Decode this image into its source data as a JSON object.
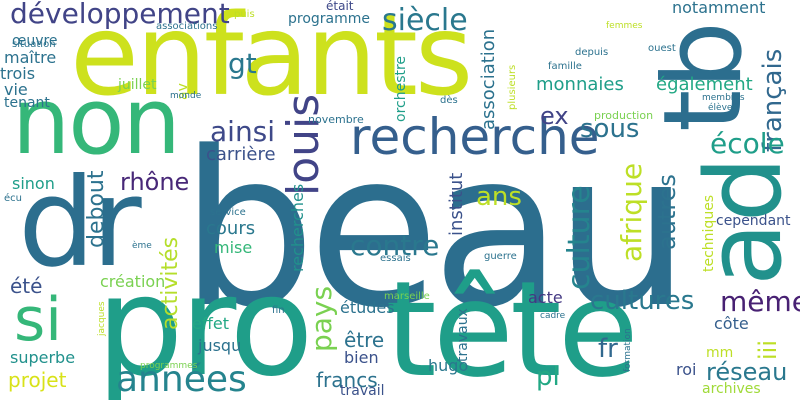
{
  "background": "#ffffff",
  "words": [
    {
      "text": "beau",
      "color": "#2c6e8e",
      "vertical": false
    },
    {
      "text": "enfants",
      "color": "#cde11d",
      "vertical": false
    },
    {
      "text": "tête",
      "color": "#1f9e89",
      "vertical": false
    },
    {
      "text": "pro",
      "color": "#1f9e89",
      "vertical": false
    },
    {
      "text": "dr",
      "color": "#2c6e8e",
      "vertical": false
    },
    {
      "text": "non",
      "color": "#35b779",
      "vertical": false
    },
    {
      "text": "ad",
      "color": "#21918c",
      "vertical": true
    },
    {
      "text": "tb",
      "color": "#2c6e8e",
      "vertical": true
    },
    {
      "text": "recherche",
      "color": "#355f8d",
      "vertical": false
    },
    {
      "text": "si",
      "color": "#35b779",
      "vertical": false
    },
    {
      "text": "louis",
      "color": "#414487",
      "vertical": true
    },
    {
      "text": "années",
      "color": "#25848e",
      "vertical": false
    },
    {
      "text": "développement",
      "color": "#414487",
      "vertical": false
    },
    {
      "text": "siècle",
      "color": "#2a788e",
      "vertical": false
    },
    {
      "text": "ainsi",
      "color": "#3e4989",
      "vertical": false
    },
    {
      "text": "contre",
      "color": "#2a788e",
      "vertical": false
    },
    {
      "text": "culture",
      "color": "#25848e",
      "vertical": true
    },
    {
      "text": "cultures",
      "color": "#2a788e",
      "vertical": false
    },
    {
      "text": "même",
      "color": "#482173",
      "vertical": false
    },
    {
      "text": "afrique",
      "color": "#bddf26",
      "vertical": true
    },
    {
      "text": "pays",
      "color": "#7ad151",
      "vertical": true
    },
    {
      "text": "français",
      "color": "#31688e",
      "vertical": true
    },
    {
      "text": "école",
      "color": "#1f9e89",
      "vertical": false
    },
    {
      "text": "ans",
      "color": "#bddf26",
      "vertical": false
    },
    {
      "text": "autres",
      "color": "#2c728e",
      "vertical": true
    },
    {
      "text": "réseau",
      "color": "#2a788e",
      "vertical": false
    },
    {
      "text": "sous",
      "color": "#2c728e",
      "vertical": false
    },
    {
      "text": "gt",
      "color": "#2a788e",
      "vertical": false
    },
    {
      "text": "ex",
      "color": "#414487",
      "vertical": false
    },
    {
      "text": "iii",
      "color": "#bddf26",
      "vertical": true
    },
    {
      "text": "pl",
      "color": "#22a884",
      "vertical": false
    },
    {
      "text": "fr",
      "color": "#31688e",
      "vertical": false
    },
    {
      "text": "debout",
      "color": "#2c728e",
      "vertical": true
    },
    {
      "text": "rhône",
      "color": "#482878",
      "vertical": false
    },
    {
      "text": "activités",
      "color": "#b5de2b",
      "vertical": true
    },
    {
      "text": "carrière",
      "color": "#3b528b",
      "vertical": false
    },
    {
      "text": "monnaies",
      "color": "#1f9e89",
      "vertical": false
    },
    {
      "text": "francs",
      "color": "#2c728e",
      "vertical": false
    },
    {
      "text": "être",
      "color": "#2c728e",
      "vertical": false
    },
    {
      "text": "projet",
      "color": "#d8e219",
      "vertical": false
    },
    {
      "text": "également",
      "color": "#22a884",
      "vertical": false
    },
    {
      "text": "notamment",
      "color": "#2c728e",
      "vertical": false
    },
    {
      "text": "programme",
      "color": "#2c728e",
      "vertical": false
    },
    {
      "text": "était",
      "color": "#3e4989",
      "vertical": false
    },
    {
      "text": "association",
      "color": "#2c728e",
      "vertical": true
    },
    {
      "text": "orchestre",
      "color": "#1f9e89",
      "vertical": true
    },
    {
      "text": "institut",
      "color": "#3b528b",
      "vertical": true
    },
    {
      "text": "recherches",
      "color": "#21918c",
      "vertical": true
    },
    {
      "text": "cours",
      "color": "#2a788e",
      "vertical": false
    },
    {
      "text": "mise",
      "color": "#35b779",
      "vertical": false
    },
    {
      "text": "sinon",
      "color": "#1f9e89",
      "vertical": false
    },
    {
      "text": "création",
      "color": "#7ad151",
      "vertical": false
    },
    {
      "text": "été",
      "color": "#3b528b",
      "vertical": false
    },
    {
      "text": "effet",
      "color": "#22a884",
      "vertical": false
    },
    {
      "text": "jusqu",
      "color": "#2c728e",
      "vertical": false
    },
    {
      "text": "superbe",
      "color": "#21918c",
      "vertical": false
    },
    {
      "text": "études",
      "color": "#2c728e",
      "vertical": false
    },
    {
      "text": "bien",
      "color": "#3b528b",
      "vertical": false
    },
    {
      "text": "acte",
      "color": "#443983",
      "vertical": false
    },
    {
      "text": "hugo",
      "color": "#2a788e",
      "vertical": false
    },
    {
      "text": "côte",
      "color": "#355f8d",
      "vertical": false
    },
    {
      "text": "roi",
      "color": "#3b528b",
      "vertical": false
    },
    {
      "text": "archives",
      "color": "#a0da39",
      "vertical": false
    },
    {
      "text": "cependant",
      "color": "#3b528b",
      "vertical": false
    },
    {
      "text": "mm",
      "color": "#bddf26",
      "vertical": false
    },
    {
      "text": "techniques",
      "color": "#bddf26",
      "vertical": true
    },
    {
      "text": "travaux",
      "color": "#2c728e",
      "vertical": true
    },
    {
      "text": "travail",
      "color": "#3b528b",
      "vertical": false
    },
    {
      "text": "maître",
      "color": "#2c728e",
      "vertical": false
    },
    {
      "text": "trois",
      "color": "#2c728e",
      "vertical": false
    },
    {
      "text": "vie",
      "color": "#2c728e",
      "vertical": false
    },
    {
      "text": "tenant",
      "color": "#2c728e",
      "vertical": false
    },
    {
      "text": "œuvre",
      "color": "#2c728e",
      "vertical": false
    },
    {
      "text": "juillet",
      "color": "#7ad151",
      "vertical": false
    },
    {
      "text": "av",
      "color": "#bddf26",
      "vertical": true
    },
    {
      "text": "novembre",
      "color": "#2c728e",
      "vertical": false
    },
    {
      "text": "monde",
      "color": "#2c728e",
      "vertical": false
    },
    {
      "text": "dès",
      "color": "#2c728e",
      "vertical": false
    },
    {
      "text": "production",
      "color": "#7ad151",
      "vertical": false
    },
    {
      "text": "famille",
      "color": "#2c728e",
      "vertical": false
    },
    {
      "text": "depuis",
      "color": "#2c728e",
      "vertical": false
    },
    {
      "text": "ouest",
      "color": "#2c728e",
      "vertical": false
    },
    {
      "text": "femmes",
      "color": "#bddf26",
      "vertical": false
    },
    {
      "text": "puis",
      "color": "#bddf26",
      "vertical": false
    },
    {
      "text": "associations",
      "color": "#2c728e",
      "vertical": false
    },
    {
      "text": "situation",
      "color": "#2c728e",
      "vertical": false
    },
    {
      "text": "plusieurs",
      "color": "#bddf26",
      "vertical": true
    },
    {
      "text": "membres",
      "color": "#2c728e",
      "vertical": false
    },
    {
      "text": "élèves",
      "color": "#2c728e",
      "vertical": false
    },
    {
      "text": "service",
      "color": "#2c728e",
      "vertical": false
    },
    {
      "text": "écu",
      "color": "#2c728e",
      "vertical": false
    },
    {
      "text": "ème",
      "color": "#2c728e",
      "vertical": false
    },
    {
      "text": "essais",
      "color": "#2c728e",
      "vertical": false
    },
    {
      "text": "guerre",
      "color": "#2c728e",
      "vertical": false
    },
    {
      "text": "marseille",
      "color": "#7ad151",
      "vertical": false
    },
    {
      "text": "cadre",
      "color": "#2c728e",
      "vertical": false
    },
    {
      "text": "fin",
      "color": "#2c728e",
      "vertical": false
    },
    {
      "text": "formation",
      "color": "#2c728e",
      "vertical": true
    },
    {
      "text": "programmes",
      "color": "#7ad151",
      "vertical": false
    },
    {
      "text": "jacques",
      "color": "#bddf26",
      "vertical": true
    }
  ]
}
